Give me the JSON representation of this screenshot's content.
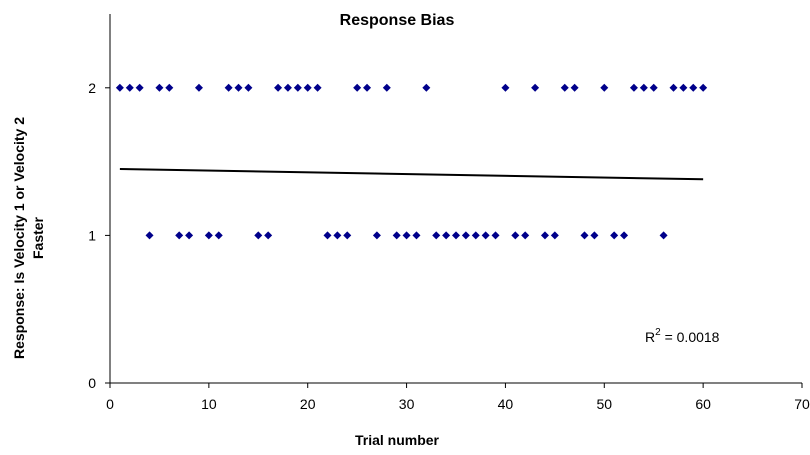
{
  "chart_data": {
    "type": "scatter",
    "title": "Response Bias",
    "xlabel": "Trial number",
    "ylabel_line1": "Response: Is Velocity 1 or Velocity 2",
    "ylabel_line2": "Faster",
    "xlim": [
      0,
      70
    ],
    "ylim": [
      0,
      2.5
    ],
    "x_ticks": [
      0,
      10,
      20,
      30,
      40,
      50,
      60,
      70
    ],
    "y_ticks": [
      0,
      1,
      2
    ],
    "grid": false,
    "marker_color": "#00008B",
    "trend_color": "#000000",
    "points": [
      [
        1,
        2
      ],
      [
        2,
        2
      ],
      [
        3,
        2
      ],
      [
        4,
        1
      ],
      [
        5,
        2
      ],
      [
        6,
        2
      ],
      [
        7,
        1
      ],
      [
        8,
        1
      ],
      [
        9,
        2
      ],
      [
        10,
        1
      ],
      [
        11,
        1
      ],
      [
        12,
        2
      ],
      [
        13,
        2
      ],
      [
        14,
        2
      ],
      [
        15,
        1
      ],
      [
        16,
        1
      ],
      [
        17,
        2
      ],
      [
        18,
        2
      ],
      [
        19,
        2
      ],
      [
        20,
        2
      ],
      [
        21,
        2
      ],
      [
        22,
        1
      ],
      [
        23,
        1
      ],
      [
        24,
        1
      ],
      [
        25,
        2
      ],
      [
        26,
        2
      ],
      [
        27,
        1
      ],
      [
        28,
        2
      ],
      [
        29,
        1
      ],
      [
        30,
        1
      ],
      [
        31,
        1
      ],
      [
        32,
        2
      ],
      [
        33,
        1
      ],
      [
        34,
        1
      ],
      [
        35,
        1
      ],
      [
        36,
        1
      ],
      [
        37,
        1
      ],
      [
        38,
        1
      ],
      [
        39,
        1
      ],
      [
        40,
        2
      ],
      [
        41,
        1
      ],
      [
        42,
        1
      ],
      [
        43,
        2
      ],
      [
        44,
        1
      ],
      [
        45,
        1
      ],
      [
        46,
        2
      ],
      [
        47,
        2
      ],
      [
        48,
        1
      ],
      [
        49,
        1
      ],
      [
        50,
        2
      ],
      [
        51,
        1
      ],
      [
        52,
        1
      ],
      [
        53,
        2
      ],
      [
        54,
        2
      ],
      [
        55,
        2
      ],
      [
        56,
        1
      ],
      [
        57,
        2
      ],
      [
        58,
        2
      ],
      [
        59,
        2
      ],
      [
        60,
        2
      ]
    ],
    "trendline": {
      "x": [
        1,
        60
      ],
      "y": [
        1.45,
        1.38
      ]
    },
    "annotation": {
      "r_label": "R",
      "r_superscript": "2",
      "r_value_text": " = 0.0018"
    }
  }
}
